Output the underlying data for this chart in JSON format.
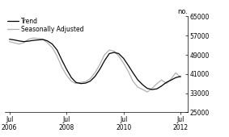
{
  "ylabel_right": "no.",
  "ylim": [
    25000,
    65000
  ],
  "yticks": [
    25000,
    33000,
    41000,
    49000,
    57000,
    65000
  ],
  "xtick_positions": [
    2006.5,
    2008.5,
    2010.5,
    2012.5
  ],
  "xtick_labels": [
    "Jul\n2006",
    "Jul\n2008",
    "Jul\n2010",
    "Jul\n2012"
  ],
  "legend_entries": [
    "Trend",
    "Seasonally Adjusted"
  ],
  "trend_color": "#000000",
  "sa_color": "#b0b0b0",
  "trend_linewidth": 0.9,
  "sa_linewidth": 0.9,
  "background_color": "#ffffff",
  "xlim": [
    2006.33,
    2012.75
  ],
  "trend_x": [
    2006.5,
    2006.67,
    2006.83,
    2007.0,
    2007.17,
    2007.33,
    2007.5,
    2007.67,
    2007.83,
    2008.0,
    2008.17,
    2008.33,
    2008.5,
    2008.67,
    2008.83,
    2009.0,
    2009.17,
    2009.33,
    2009.5,
    2009.67,
    2009.83,
    2010.0,
    2010.17,
    2010.33,
    2010.5,
    2010.67,
    2010.83,
    2011.0,
    2011.17,
    2011.33,
    2011.5,
    2011.67,
    2011.83,
    2012.0,
    2012.17,
    2012.33,
    2012.5
  ],
  "trend_y": [
    55500,
    55200,
    54800,
    54500,
    54700,
    55000,
    55200,
    55400,
    54800,
    53500,
    51000,
    47000,
    43000,
    39500,
    37500,
    37000,
    37200,
    38000,
    40000,
    43000,
    46500,
    49500,
    50000,
    49500,
    47500,
    44500,
    41500,
    38500,
    36500,
    35000,
    34500,
    34800,
    36000,
    37500,
    38500,
    39500,
    40000
  ],
  "sa_x": [
    2006.5,
    2006.67,
    2006.83,
    2007.0,
    2007.17,
    2007.33,
    2007.5,
    2007.67,
    2007.83,
    2008.0,
    2008.17,
    2008.33,
    2008.5,
    2008.67,
    2008.83,
    2009.0,
    2009.17,
    2009.33,
    2009.5,
    2009.67,
    2009.83,
    2010.0,
    2010.17,
    2010.33,
    2010.5,
    2010.67,
    2010.83,
    2011.0,
    2011.17,
    2011.33,
    2011.5,
    2011.67,
    2011.83,
    2012.0,
    2012.17,
    2012.33,
    2012.5
  ],
  "sa_y": [
    54500,
    54000,
    53500,
    54000,
    55500,
    56000,
    55800,
    55500,
    54000,
    52000,
    48500,
    44000,
    40500,
    38000,
    37000,
    37500,
    37800,
    39000,
    41500,
    45000,
    49000,
    51000,
    50500,
    48500,
    45500,
    42000,
    38000,
    35500,
    34500,
    33500,
    35000,
    37000,
    38500,
    37000,
    39000,
    41500,
    39500
  ]
}
